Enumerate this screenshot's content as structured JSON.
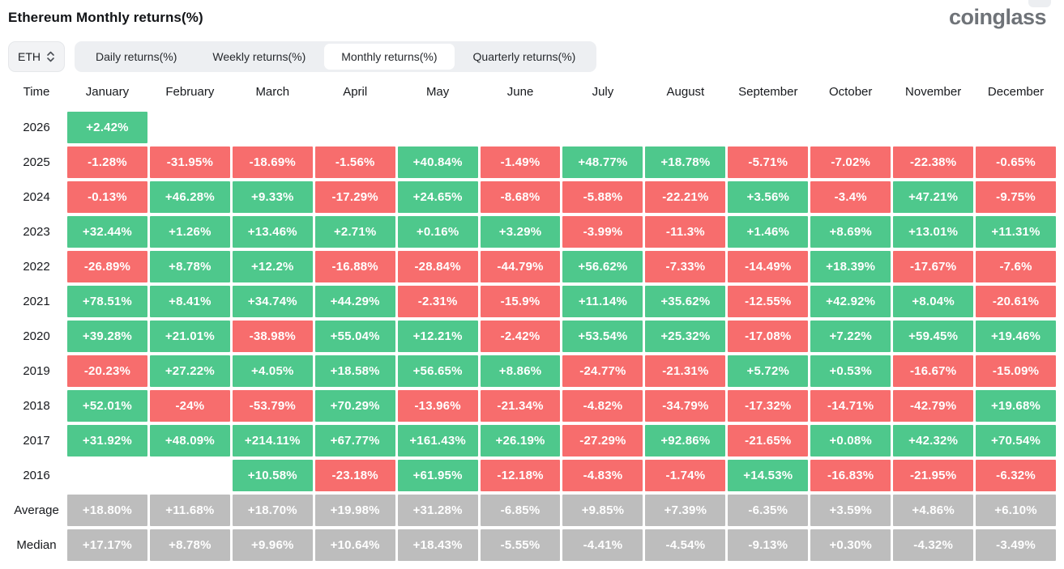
{
  "header": {
    "title": "Ethereum Monthly returns(%)",
    "logo_text": "coinglass"
  },
  "controls": {
    "symbol": "ETH",
    "tabs": [
      {
        "label": "Daily returns(%)",
        "active": false
      },
      {
        "label": "Weekly returns(%)",
        "active": false
      },
      {
        "label": "Monthly returns(%)",
        "active": true
      },
      {
        "label": "Quarterly returns(%)",
        "active": false
      }
    ]
  },
  "colors": {
    "positive": "#4ec88c",
    "negative": "#f76d6d",
    "neutral": "#bdbdbd"
  },
  "chart_data": {
    "type": "heatmap",
    "title": "Ethereum Monthly returns(%)",
    "unit": "%",
    "legend": "green = positive monthly return, red = negative, gray = aggregate rows",
    "columns": [
      "Time",
      "January",
      "February",
      "March",
      "April",
      "May",
      "June",
      "July",
      "August",
      "September",
      "October",
      "November",
      "December"
    ],
    "rows": [
      {
        "label": "2026",
        "neutral": false,
        "values": [
          "+2.42%",
          "",
          "",
          "",
          "",
          "",
          "",
          "",
          "",
          "",
          "",
          ""
        ]
      },
      {
        "label": "2025",
        "neutral": false,
        "values": [
          "-1.28%",
          "-31.95%",
          "-18.69%",
          "-1.56%",
          "+40.84%",
          "-1.49%",
          "+48.77%",
          "+18.78%",
          "-5.71%",
          "-7.02%",
          "-22.38%",
          "-0.65%"
        ]
      },
      {
        "label": "2024",
        "neutral": false,
        "values": [
          "-0.13%",
          "+46.28%",
          "+9.33%",
          "-17.29%",
          "+24.65%",
          "-8.68%",
          "-5.88%",
          "-22.21%",
          "+3.56%",
          "-3.4%",
          "+47.21%",
          "-9.75%"
        ]
      },
      {
        "label": "2023",
        "neutral": false,
        "values": [
          "+32.44%",
          "+1.26%",
          "+13.46%",
          "+2.71%",
          "+0.16%",
          "+3.29%",
          "-3.99%",
          "-11.3%",
          "+1.46%",
          "+8.69%",
          "+13.01%",
          "+11.31%"
        ]
      },
      {
        "label": "2022",
        "neutral": false,
        "values": [
          "-26.89%",
          "+8.78%",
          "+12.2%",
          "-16.88%",
          "-28.84%",
          "-44.79%",
          "+56.62%",
          "-7.33%",
          "-14.49%",
          "+18.39%",
          "-17.67%",
          "-7.6%"
        ]
      },
      {
        "label": "2021",
        "neutral": false,
        "values": [
          "+78.51%",
          "+8.41%",
          "+34.74%",
          "+44.29%",
          "-2.31%",
          "-15.9%",
          "+11.14%",
          "+35.62%",
          "-12.55%",
          "+42.92%",
          "+8.04%",
          "-20.61%"
        ]
      },
      {
        "label": "2020",
        "neutral": false,
        "values": [
          "+39.28%",
          "+21.01%",
          "-38.98%",
          "+55.04%",
          "+12.21%",
          "-2.42%",
          "+53.54%",
          "+25.32%",
          "-17.08%",
          "+7.22%",
          "+59.45%",
          "+19.46%"
        ]
      },
      {
        "label": "2019",
        "neutral": false,
        "values": [
          "-20.23%",
          "+27.22%",
          "+4.05%",
          "+18.58%",
          "+56.65%",
          "+8.86%",
          "-24.77%",
          "-21.31%",
          "+5.72%",
          "+0.53%",
          "-16.67%",
          "-15.09%"
        ]
      },
      {
        "label": "2018",
        "neutral": false,
        "values": [
          "+52.01%",
          "-24%",
          "-53.79%",
          "+70.29%",
          "-13.96%",
          "-21.34%",
          "-4.82%",
          "-34.79%",
          "-17.32%",
          "-14.71%",
          "-42.79%",
          "+19.68%"
        ]
      },
      {
        "label": "2017",
        "neutral": false,
        "values": [
          "+31.92%",
          "+48.09%",
          "+214.11%",
          "+67.77%",
          "+161.43%",
          "+26.19%",
          "-27.29%",
          "+92.86%",
          "-21.65%",
          "+0.08%",
          "+42.32%",
          "+70.54%"
        ]
      },
      {
        "label": "2016",
        "neutral": false,
        "values": [
          "",
          "",
          "+10.58%",
          "-23.18%",
          "+61.95%",
          "-12.18%",
          "-4.83%",
          "-1.74%",
          "+14.53%",
          "-16.83%",
          "-21.95%",
          "-6.32%"
        ]
      },
      {
        "label": "Average",
        "neutral": true,
        "values": [
          "+18.80%",
          "+11.68%",
          "+18.70%",
          "+19.98%",
          "+31.28%",
          "-6.85%",
          "+9.85%",
          "+7.39%",
          "-6.35%",
          "+3.59%",
          "+4.86%",
          "+6.10%"
        ]
      },
      {
        "label": "Median",
        "neutral": true,
        "values": [
          "+17.17%",
          "+8.78%",
          "+9.96%",
          "+10.64%",
          "+18.43%",
          "-5.55%",
          "-4.41%",
          "-4.54%",
          "-9.13%",
          "+0.30%",
          "-4.32%",
          "-3.49%"
        ]
      }
    ]
  }
}
